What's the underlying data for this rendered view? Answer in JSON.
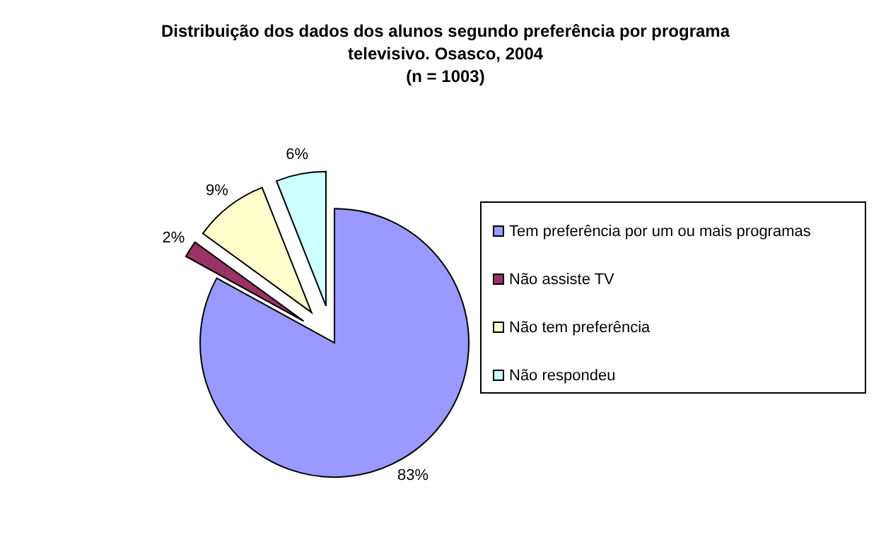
{
  "chart_data": {
    "type": "pie",
    "title": "Distribuição dos dados dos alunos segundo preferência por programa\ntelevisivo. Osasco, 2004\n(n = 1003)",
    "categories": [
      "Tem preferência por um ou mais programas",
      "Não assiste TV",
      "Não tem preferência",
      "Não respondeu"
    ],
    "values": [
      83,
      2,
      9,
      6
    ],
    "colors": [
      "#9999ff",
      "#993366",
      "#ffffcc",
      "#ccffff"
    ],
    "value_labels": [
      "83%",
      "2%",
      "9%",
      "6%"
    ],
    "legend": "right"
  }
}
